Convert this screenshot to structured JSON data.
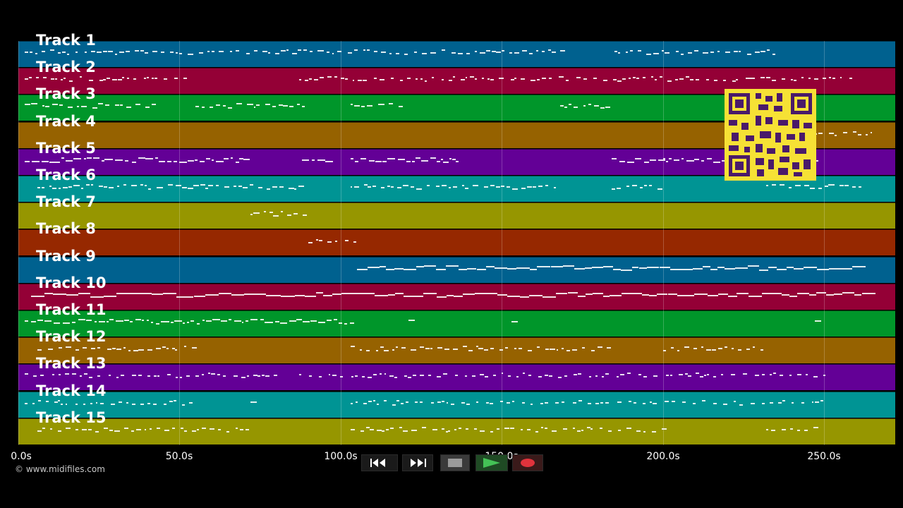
{
  "tracks": [
    {
      "label": "Track 1",
      "color": "#00618f"
    },
    {
      "label": "Track 2",
      "color": "#940036"
    },
    {
      "label": "Track 3",
      "color": "#00962a"
    },
    {
      "label": "Track 4",
      "color": "#966200"
    },
    {
      "label": "Track 5",
      "color": "#630096"
    },
    {
      "label": "Track 6",
      "color": "#009494"
    },
    {
      "label": "Track 7",
      "color": "#969600"
    },
    {
      "label": "Track 8",
      "color": "#962800"
    },
    {
      "label": "Track 9",
      "color": "#00618f"
    },
    {
      "label": "Track 10",
      "color": "#940036"
    },
    {
      "label": "Track 11",
      "color": "#00962a"
    },
    {
      "label": "Track 12",
      "color": "#966200"
    },
    {
      "label": "Track 13",
      "color": "#630096"
    },
    {
      "label": "Track 14",
      "color": "#009494"
    },
    {
      "label": "Track 15",
      "color": "#969600"
    }
  ],
  "timeline": {
    "max_seconds": 272,
    "ticks": [
      {
        "seconds": 0,
        "label": "0.0s"
      },
      {
        "seconds": 50,
        "label": "50.0s"
      },
      {
        "seconds": 100,
        "label": "100.0s"
      },
      {
        "seconds": 150,
        "label": "150.0s"
      },
      {
        "seconds": 200,
        "label": "200.0s"
      },
      {
        "seconds": 250,
        "label": "250.0s"
      }
    ]
  },
  "copyright": "© www.midifiles.com",
  "controls": {
    "rewind_icon": "rewind-icon",
    "fast_forward_icon": "fast-forward-icon",
    "stop_icon": "stop-icon",
    "play_icon": "play-icon",
    "record_icon": "record-icon",
    "play_color": "#44c256",
    "record_color": "#e0333c"
  },
  "overlay": {
    "icon": "qr-code-icon",
    "color": "#f6e135"
  }
}
